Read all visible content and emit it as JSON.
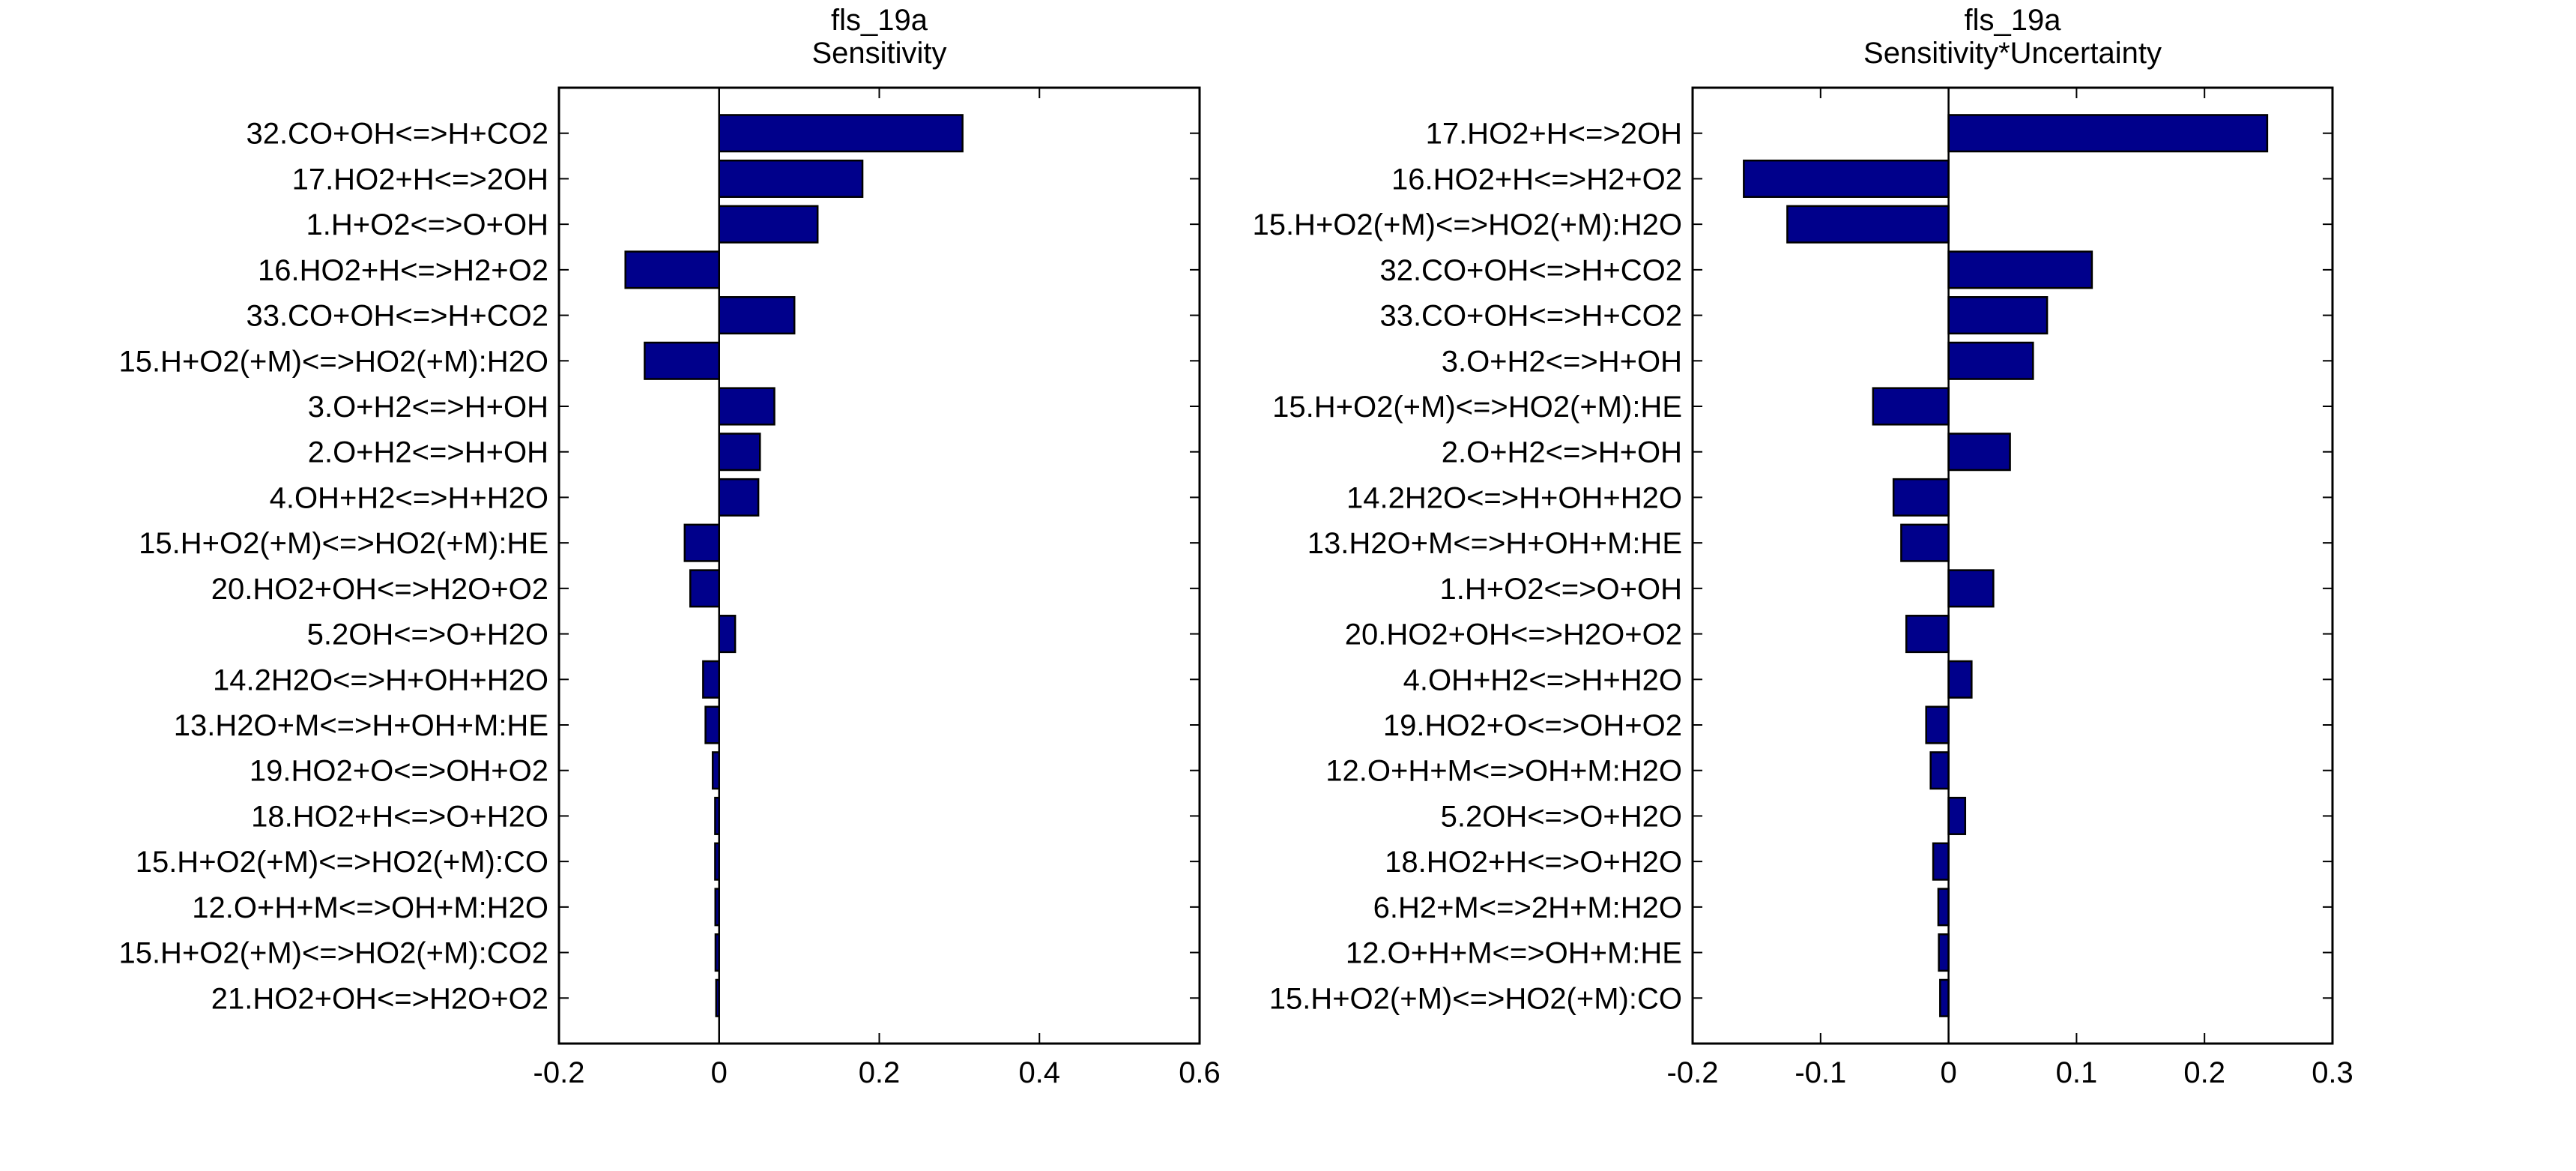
{
  "chart_data": [
    {
      "type": "bar",
      "orientation": "horizontal",
      "title": "fls_19a",
      "subtitle": "Sensitivity",
      "xlabel": "",
      "ylabel": "",
      "xlim": [
        -0.2,
        0.6
      ],
      "xticks": [
        -0.2,
        0,
        0.2,
        0.4,
        0.6
      ],
      "xtick_labels": [
        "-0.2",
        "0",
        "0.2",
        "0.4",
        "0.6"
      ],
      "grid": false,
      "bar_color": "#00008b",
      "categories": [
        "32.CO+OH<=>H+CO2",
        "17.HO2+H<=>2OH",
        "1.H+O2<=>O+OH",
        "16.HO2+H<=>H2+O2",
        "33.CO+OH<=>H+CO2",
        "15.H+O2(+M)<=>HO2(+M):H2O",
        "3.O+H2<=>H+OH",
        "2.O+H2<=>H+OH",
        "4.OH+H2<=>H+H2O",
        "15.H+O2(+M)<=>HO2(+M):HE",
        "20.HO2+OH<=>H2O+O2",
        "5.2OH<=>O+H2O",
        "14.2H2O<=>H+OH+H2O",
        "13.H2O+M<=>H+OH+M:HE",
        "19.HO2+O<=>OH+O2",
        "18.HO2+H<=>O+H2O",
        "15.H+O2(+M)<=>HO2(+M):CO",
        "12.O+H+M<=>OH+M:H2O",
        "15.H+O2(+M)<=>HO2(+M):CO2",
        "21.HO2+OH<=>H2O+O2"
      ],
      "values": [
        0.304,
        0.179,
        0.123,
        -0.117,
        0.094,
        -0.093,
        0.069,
        0.051,
        0.049,
        -0.043,
        -0.036,
        0.02,
        -0.02,
        -0.017,
        -0.008,
        -0.005,
        -0.005,
        -0.0047,
        -0.0045,
        -0.0037
      ]
    },
    {
      "type": "bar",
      "orientation": "horizontal",
      "title": "fls_19a",
      "subtitle": "Sensitivity*Uncertainty",
      "xlabel": "",
      "ylabel": "",
      "xlim": [
        -0.2,
        0.3
      ],
      "xticks": [
        -0.2,
        -0.1,
        0,
        0.1,
        0.2,
        0.3
      ],
      "xtick_labels": [
        "-0.2",
        "-0.1",
        "0",
        "0.1",
        "0.2",
        "0.3"
      ],
      "grid": false,
      "bar_color": "#00008b",
      "categories": [
        "17.HO2+H<=>2OH",
        "16.HO2+H<=>H2+O2",
        "15.H+O2(+M)<=>HO2(+M):H2O",
        "32.CO+OH<=>H+CO2",
        "33.CO+OH<=>H+CO2",
        "3.O+H2<=>H+OH",
        "15.H+O2(+M)<=>HO2(+M):HE",
        "2.O+H2<=>H+OH",
        "14.2H2O<=>H+OH+H2O",
        "13.H2O+M<=>H+OH+M:HE",
        "1.H+O2<=>O+OH",
        "20.HO2+OH<=>H2O+O2",
        "4.OH+H2<=>H+H2O",
        "19.HO2+O<=>OH+O2",
        "12.O+H+M<=>OH+M:H2O",
        "5.2OH<=>O+H2O",
        "18.HO2+H<=>O+H2O",
        "6.H2+M<=>2H+M:H2O",
        "12.O+H+M<=>OH+M:HE",
        "15.H+O2(+M)<=>HO2(+M):CO"
      ],
      "values": [
        0.249,
        -0.16,
        -0.126,
        0.112,
        0.077,
        0.066,
        -0.059,
        0.048,
        -0.043,
        -0.037,
        0.035,
        -0.033,
        0.018,
        -0.0175,
        -0.014,
        0.013,
        -0.012,
        -0.008,
        -0.0076,
        -0.0066
      ]
    }
  ]
}
